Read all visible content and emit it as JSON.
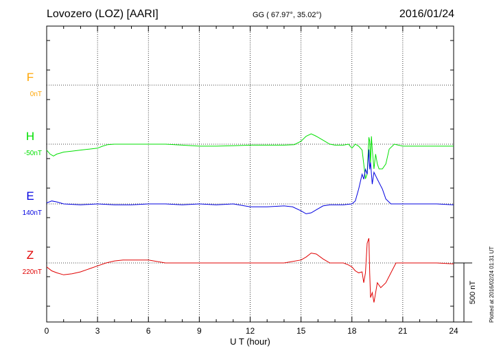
{
  "header": {
    "station": "Lovozero (LOZ)  [AARI]",
    "coords": "GG ( 67.97°,  35.02°)",
    "date": "2016/01/24"
  },
  "plotted_note": "Plotted at 2016/02/24 01:31  UT",
  "scale_label": "500 nT",
  "chart_data": {
    "type": "line",
    "xlabel": "U T (hour)",
    "xlim": [
      0,
      24
    ],
    "xticks": [
      "0",
      "3",
      "6",
      "9",
      "12",
      "15",
      "18",
      "21",
      "24"
    ],
    "grid": true,
    "scale_nT": 500,
    "series": [
      {
        "name": "F",
        "baseline_label": "0nT",
        "color": "#ffa500",
        "baseline_nT": 0,
        "x": [],
        "y": []
      },
      {
        "name": "H",
        "baseline_label": "-50nT",
        "color": "#00e000",
        "baseline_nT": -50,
        "x": [
          0,
          0.2,
          0.4,
          0.6,
          0.8,
          1.0,
          1.5,
          2.0,
          2.5,
          3.0,
          3.3,
          3.6,
          4.0,
          5.0,
          6.0,
          7.0,
          8.0,
          9.0,
          10.0,
          11.0,
          12.0,
          13.0,
          14.0,
          14.6,
          15.0,
          15.3,
          15.6,
          15.9,
          16.3,
          16.7,
          17.0,
          17.5,
          17.8,
          18.0,
          18.2,
          18.4,
          18.6,
          18.7,
          18.8,
          18.9,
          19.0,
          19.05,
          19.1,
          19.15,
          19.2,
          19.3,
          19.4,
          19.5,
          19.6,
          19.8,
          20.0,
          20.2,
          20.5,
          21.0,
          22.0,
          23.0,
          24.0
        ],
        "y": [
          -60,
          -100,
          -120,
          -100,
          -90,
          -80,
          -70,
          -60,
          -50,
          -40,
          -20,
          -5,
          0,
          0,
          0,
          0,
          -10,
          -20,
          -20,
          -15,
          -10,
          -10,
          -10,
          -5,
          30,
          80,
          105,
          80,
          40,
          0,
          -10,
          -10,
          0,
          -40,
          0,
          -20,
          -60,
          -200,
          -350,
          -300,
          70,
          30,
          -200,
          80,
          -50,
          -250,
          -100,
          -200,
          -250,
          -250,
          -200,
          -50,
          0,
          -20,
          -20,
          -20,
          -20
        ]
      },
      {
        "name": "E",
        "baseline_label": "140nT",
        "color": "#0000e0",
        "baseline_nT": 140,
        "x": [
          0,
          0.3,
          0.6,
          1.0,
          2.0,
          3.0,
          4.0,
          5.0,
          6.0,
          7.0,
          8.0,
          9.0,
          10.0,
          11.0,
          12.0,
          13.0,
          14.0,
          14.5,
          15.0,
          15.3,
          15.6,
          15.9,
          16.3,
          16.7,
          17.0,
          17.5,
          18.0,
          18.2,
          18.4,
          18.6,
          18.7,
          18.8,
          18.9,
          19.0,
          19.05,
          19.1,
          19.2,
          19.3,
          19.5,
          19.8,
          20.0,
          20.3,
          20.6,
          21.0,
          22.0,
          23.0,
          24.0
        ],
        "y": [
          10,
          30,
          20,
          0,
          -10,
          0,
          -10,
          -10,
          0,
          0,
          -10,
          0,
          -10,
          0,
          -30,
          -30,
          -20,
          -30,
          -70,
          -100,
          -90,
          -60,
          -20,
          -10,
          -10,
          -10,
          0,
          30,
          150,
          300,
          250,
          350,
          300,
          550,
          350,
          420,
          200,
          320,
          250,
          150,
          50,
          0,
          0,
          0,
          0,
          0,
          -10
        ]
      },
      {
        "name": "Z",
        "baseline_label": "220nT",
        "color": "#e00000",
        "baseline_nT": 220,
        "x": [
          0,
          0.3,
          0.6,
          1.0,
          1.5,
          2.0,
          2.5,
          3.0,
          3.5,
          4.0,
          4.5,
          5.0,
          6.0,
          7.0,
          8.0,
          9.0,
          10.0,
          11.0,
          12.0,
          13.0,
          14.0,
          15.0,
          15.3,
          15.6,
          15.9,
          16.3,
          16.7,
          17.0,
          17.5,
          17.8,
          18.0,
          18.2,
          18.4,
          18.6,
          18.7,
          18.8,
          18.9,
          19.0,
          19.05,
          19.1,
          19.2,
          19.3,
          19.5,
          19.7,
          20.0,
          20.3,
          20.6,
          21.0,
          22.0,
          23.0,
          24.0
        ],
        "y": [
          -40,
          -80,
          -100,
          -120,
          -110,
          -90,
          -60,
          -30,
          0,
          20,
          30,
          30,
          30,
          0,
          0,
          0,
          0,
          0,
          0,
          0,
          0,
          30,
          60,
          100,
          90,
          40,
          0,
          0,
          0,
          -20,
          -40,
          -80,
          -100,
          -90,
          -200,
          -100,
          200,
          250,
          -100,
          -350,
          -300,
          -400,
          -200,
          -250,
          -200,
          -100,
          0,
          0,
          0,
          0,
          -10
        ]
      }
    ]
  }
}
